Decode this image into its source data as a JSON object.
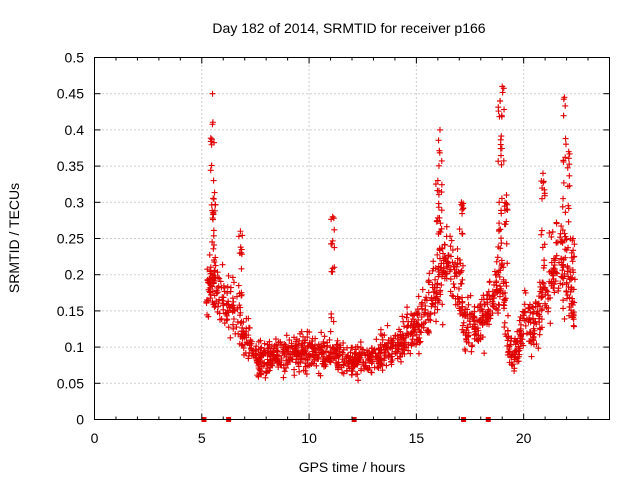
{
  "chart_data": {
    "type": "scatter",
    "title": "Day 182 of 2014, SRMTID for receiver p166",
    "xlabel": "GPS time / hours",
    "ylabel": "SRMTID / TECUs",
    "xlim": [
      0,
      24
    ],
    "ylim": [
      0,
      0.5
    ],
    "grid": true,
    "marker": "+",
    "color": "#e00000",
    "x_ticks": [
      0,
      5,
      10,
      15,
      20
    ],
    "x_tick_labels": [
      "0",
      "5",
      "10",
      "15",
      "20"
    ],
    "y_ticks": [
      0,
      0.05,
      0.1,
      0.15,
      0.2,
      0.25,
      0.3,
      0.35,
      0.4,
      0.45,
      0.5
    ],
    "y_tick_labels": [
      "0",
      "0.05",
      "0.1",
      "0.15",
      "0.2",
      "0.25",
      "0.3",
      "0.35",
      "0.4",
      "0.45",
      "0.5"
    ],
    "data_gap_markers": [
      {
        "x": 5.1,
        "y": 0
      },
      {
        "x": 6.25,
        "y": 0
      },
      {
        "x": 12.1,
        "y": 0
      },
      {
        "x": 17.2,
        "y": 0
      },
      {
        "x": 18.35,
        "y": 0
      }
    ],
    "series": [
      {
        "name": "SRMTID",
        "envelope": [
          {
            "x": 5.2,
            "y": 0.15
          },
          {
            "x": 5.4,
            "y": 0.2
          },
          {
            "x": 5.6,
            "y": 0.18
          },
          {
            "x": 6.0,
            "y": 0.16
          },
          {
            "x": 6.5,
            "y": 0.15
          },
          {
            "x": 7.0,
            "y": 0.12
          },
          {
            "x": 7.5,
            "y": 0.09
          },
          {
            "x": 8.0,
            "y": 0.085
          },
          {
            "x": 9.0,
            "y": 0.09
          },
          {
            "x": 10.0,
            "y": 0.095
          },
          {
            "x": 11.0,
            "y": 0.09
          },
          {
            "x": 12.0,
            "y": 0.08
          },
          {
            "x": 13.0,
            "y": 0.085
          },
          {
            "x": 14.0,
            "y": 0.1
          },
          {
            "x": 15.0,
            "y": 0.13
          },
          {
            "x": 15.5,
            "y": 0.15
          },
          {
            "x": 16.0,
            "y": 0.19
          },
          {
            "x": 16.5,
            "y": 0.22
          },
          {
            "x": 17.0,
            "y": 0.2
          },
          {
            "x": 17.2,
            "y": 0.13
          },
          {
            "x": 17.7,
            "y": 0.13
          },
          {
            "x": 18.2,
            "y": 0.14
          },
          {
            "x": 18.7,
            "y": 0.18
          },
          {
            "x": 19.0,
            "y": 0.2
          },
          {
            "x": 19.3,
            "y": 0.1
          },
          {
            "x": 19.6,
            "y": 0.09
          },
          {
            "x": 20.0,
            "y": 0.14
          },
          {
            "x": 20.5,
            "y": 0.13
          },
          {
            "x": 21.0,
            "y": 0.18
          },
          {
            "x": 21.5,
            "y": 0.22
          },
          {
            "x": 22.0,
            "y": 0.2
          },
          {
            "x": 22.4,
            "y": 0.15
          }
        ],
        "spikes": [
          {
            "x": 5.5,
            "y": 0.45
          },
          {
            "x": 5.55,
            "y": 0.33
          },
          {
            "x": 6.8,
            "y": 0.26
          },
          {
            "x": 11.1,
            "y": 0.28
          },
          {
            "x": 16.1,
            "y": 0.4
          },
          {
            "x": 16.0,
            "y": 0.33
          },
          {
            "x": 17.1,
            "y": 0.3
          },
          {
            "x": 19.0,
            "y": 0.46
          },
          {
            "x": 18.9,
            "y": 0.44
          },
          {
            "x": 19.2,
            "y": 0.31
          },
          {
            "x": 20.9,
            "y": 0.34
          },
          {
            "x": 21.9,
            "y": 0.445
          },
          {
            "x": 22.1,
            "y": 0.37
          },
          {
            "x": 22.3,
            "y": 0.25
          }
        ]
      }
    ]
  }
}
